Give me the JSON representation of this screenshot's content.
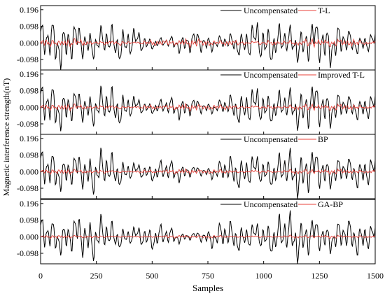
{
  "figure": {
    "ylabel": "Magnetic interference strength(nT)",
    "xlabel": "Samples",
    "x_ticks": [
      "0",
      "250",
      "500",
      "750",
      "1000",
      "1250",
      "1500"
    ],
    "y_ticks": [
      "-0.098",
      "0.000",
      "0.098",
      "0.196"
    ]
  },
  "colors": {
    "uncompensated": "#000000",
    "compensated": "#e8413a"
  },
  "chart_data": [
    {
      "type": "line",
      "xlim": [
        0,
        1500
      ],
      "ylim": [
        -0.16,
        0.22
      ],
      "x_ticks": [
        0,
        250,
        500,
        750,
        1000,
        1250,
        1500
      ],
      "y_ticks": [
        -0.098,
        0,
        0.098,
        0.196
      ],
      "grid": false,
      "legend_placement": "top-right",
      "series": [
        {
          "name": "Uncompensated",
          "approx_amplitude": 0.12
        },
        {
          "name": "T-L",
          "approx_amplitude": 0.03
        }
      ]
    },
    {
      "type": "line",
      "xlim": [
        0,
        1500
      ],
      "ylim": [
        -0.16,
        0.22
      ],
      "x_ticks": [
        0,
        250,
        500,
        750,
        1000,
        1250,
        1500
      ],
      "y_ticks": [
        -0.098,
        0,
        0.098,
        0.196
      ],
      "grid": false,
      "legend_placement": "top-right",
      "series": [
        {
          "name": "Uncompensated",
          "approx_amplitude": 0.12
        },
        {
          "name": "Improved T-L",
          "approx_amplitude": 0.025
        }
      ]
    },
    {
      "type": "line",
      "xlim": [
        0,
        1500
      ],
      "ylim": [
        -0.16,
        0.22
      ],
      "x_ticks": [
        0,
        250,
        500,
        750,
        1000,
        1250,
        1500
      ],
      "y_ticks": [
        -0.098,
        0,
        0.098,
        0.196
      ],
      "grid": false,
      "legend_placement": "top-right",
      "series": [
        {
          "name": "Uncompensated",
          "approx_amplitude": 0.12
        },
        {
          "name": "BP",
          "approx_amplitude": 0.02
        }
      ]
    },
    {
      "type": "line",
      "xlim": [
        0,
        1500
      ],
      "ylim": [
        -0.16,
        0.22
      ],
      "x_ticks": [
        0,
        250,
        500,
        750,
        1000,
        1250,
        1500
      ],
      "y_ticks": [
        -0.098,
        0,
        0.098,
        0.196
      ],
      "grid": false,
      "legend_placement": "top-right",
      "series": [
        {
          "name": "Uncompensated",
          "approx_amplitude": 0.12
        },
        {
          "name": "GA-BP",
          "approx_amplitude": 0.012
        }
      ]
    }
  ]
}
